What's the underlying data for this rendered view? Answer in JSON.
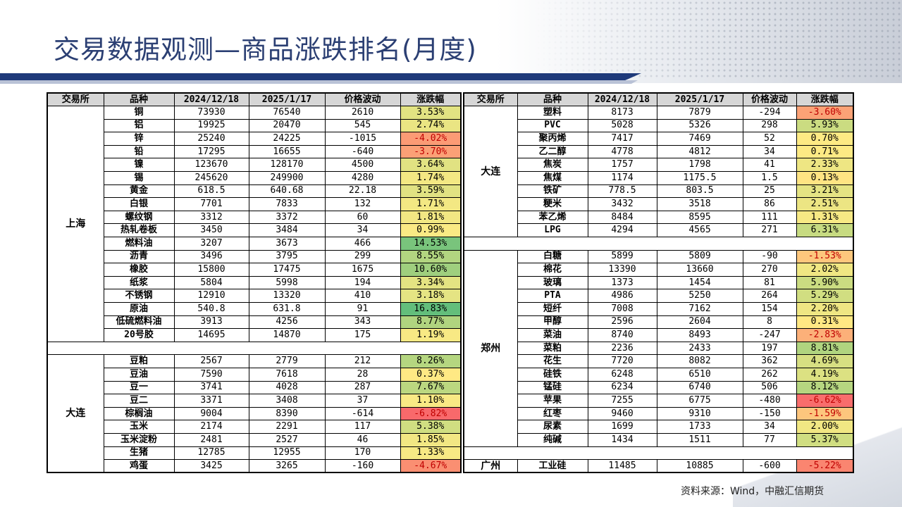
{
  "title": "交易数据观测—商品涨跌排名(月度)",
  "source": "资料来源：Wind，中融汇信期货",
  "headers": [
    "交易所",
    "品种",
    "2024/12/18",
    "2025/1/17",
    "价格波动",
    "涨跌幅"
  ],
  "left_groups": [
    {
      "exchange": "上海",
      "rows": [
        [
          "铜",
          "73930",
          "76540",
          "2610",
          "3.53%"
        ],
        [
          "铝",
          "19925",
          "20470",
          "545",
          "2.74%"
        ],
        [
          "锌",
          "25240",
          "24225",
          "-1015",
          "-4.02%"
        ],
        [
          "铅",
          "17295",
          "16655",
          "-640",
          "-3.70%"
        ],
        [
          "镍",
          "123670",
          "128170",
          "4500",
          "3.64%"
        ],
        [
          "锡",
          "245620",
          "249900",
          "4280",
          "1.74%"
        ],
        [
          "黄金",
          "618.5",
          "640.68",
          "22.18",
          "3.59%"
        ],
        [
          "白银",
          "7701",
          "7833",
          "132",
          "1.71%"
        ],
        [
          "螺纹钢",
          "3312",
          "3372",
          "60",
          "1.81%"
        ],
        [
          "热轧卷板",
          "3450",
          "3484",
          "34",
          "0.99%"
        ],
        [
          "燃料油",
          "3207",
          "3673",
          "466",
          "14.53%"
        ],
        [
          "沥青",
          "3496",
          "3795",
          "299",
          "8.55%"
        ],
        [
          "橡胶",
          "15800",
          "17475",
          "1675",
          "10.60%"
        ],
        [
          "纸浆",
          "5804",
          "5998",
          "194",
          "3.34%"
        ],
        [
          "不锈钢",
          "12910",
          "13320",
          "410",
          "3.18%"
        ],
        [
          "原油",
          "540.8",
          "631.8",
          "91",
          "16.83%"
        ],
        [
          "低硫燃料油",
          "3913",
          "4256",
          "343",
          "8.77%"
        ],
        [
          "20号胶",
          "14695",
          "14870",
          "175",
          "1.19%"
        ]
      ]
    },
    {
      "exchange": "大连",
      "rows": [
        [
          "豆粕",
          "2567",
          "2779",
          "212",
          "8.26%"
        ],
        [
          "豆油",
          "7590",
          "7618",
          "28",
          "0.37%"
        ],
        [
          "豆一",
          "3741",
          "4028",
          "287",
          "7.67%"
        ],
        [
          "豆二",
          "3371",
          "3408",
          "37",
          "1.10%"
        ],
        [
          "棕榈油",
          "9004",
          "8390",
          "-614",
          "-6.82%"
        ],
        [
          "玉米",
          "2174",
          "2291",
          "117",
          "5.38%"
        ],
        [
          "玉米淀粉",
          "2481",
          "2527",
          "46",
          "1.85%"
        ],
        [
          "生猪",
          "12785",
          "12955",
          "170",
          "1.33%"
        ],
        [
          "鸡蛋",
          "3425",
          "3265",
          "-160",
          "-4.67%"
        ]
      ]
    }
  ],
  "right_groups": [
    {
      "exchange": "大连",
      "rows": [
        [
          "塑料",
          "8173",
          "7879",
          "-294",
          "-3.60%"
        ],
        [
          "PVC",
          "5028",
          "5326",
          "298",
          "5.93%"
        ],
        [
          "聚丙烯",
          "7417",
          "7469",
          "52",
          "0.70%"
        ],
        [
          "乙二醇",
          "4778",
          "4812",
          "34",
          "0.71%"
        ],
        [
          "焦炭",
          "1757",
          "1798",
          "41",
          "2.33%"
        ],
        [
          "焦煤",
          "1174",
          "1175.5",
          "1.5",
          "0.13%"
        ],
        [
          "铁矿",
          "778.5",
          "803.5",
          "25",
          "3.21%"
        ],
        [
          "粳米",
          "3432",
          "3518",
          "86",
          "2.51%"
        ],
        [
          "苯乙烯",
          "8484",
          "8595",
          "111",
          "1.31%"
        ],
        [
          "LPG",
          "4294",
          "4565",
          "271",
          "6.31%"
        ]
      ]
    },
    {
      "exchange": "郑州",
      "rows": [
        [
          "白糖",
          "5899",
          "5809",
          "-90",
          "-1.53%"
        ],
        [
          "棉花",
          "13390",
          "13660",
          "270",
          "2.02%"
        ],
        [
          "玻璃",
          "1373",
          "1454",
          "81",
          "5.90%"
        ],
        [
          "PTA",
          "4986",
          "5250",
          "264",
          "5.29%"
        ],
        [
          "短纤",
          "7008",
          "7162",
          "154",
          "2.20%"
        ],
        [
          "甲醇",
          "2596",
          "2604",
          "8",
          "0.31%"
        ],
        [
          "菜油",
          "8740",
          "8493",
          "-247",
          "-2.83%"
        ],
        [
          "菜粕",
          "2236",
          "2433",
          "197",
          "8.81%"
        ],
        [
          "花生",
          "7720",
          "8082",
          "362",
          "4.69%"
        ],
        [
          "硅铁",
          "6248",
          "6510",
          "262",
          "4.19%"
        ],
        [
          "锰硅",
          "6234",
          "6740",
          "506",
          "8.12%"
        ],
        [
          "苹果",
          "7255",
          "6775",
          "-480",
          "-6.62%"
        ],
        [
          "红枣",
          "9460",
          "9310",
          "-150",
          "-1.59%"
        ],
        [
          "尿素",
          "1699",
          "1733",
          "34",
          "2.00%"
        ],
        [
          "纯碱",
          "1434",
          "1511",
          "77",
          "5.37%"
        ]
      ]
    },
    {
      "exchange": "广州",
      "rows": [
        [
          "工业硅",
          "11485",
          "10885",
          "-600",
          "-5.22%"
        ]
      ]
    }
  ],
  "colors": {
    "title": "#2b3f73",
    "bar": "#1f3a7a",
    "scale_negative": "#f8696b",
    "scale_mid": "#ffeb84",
    "scale_positive": "#63be7b",
    "header_bg": "#d6d6d6"
  }
}
